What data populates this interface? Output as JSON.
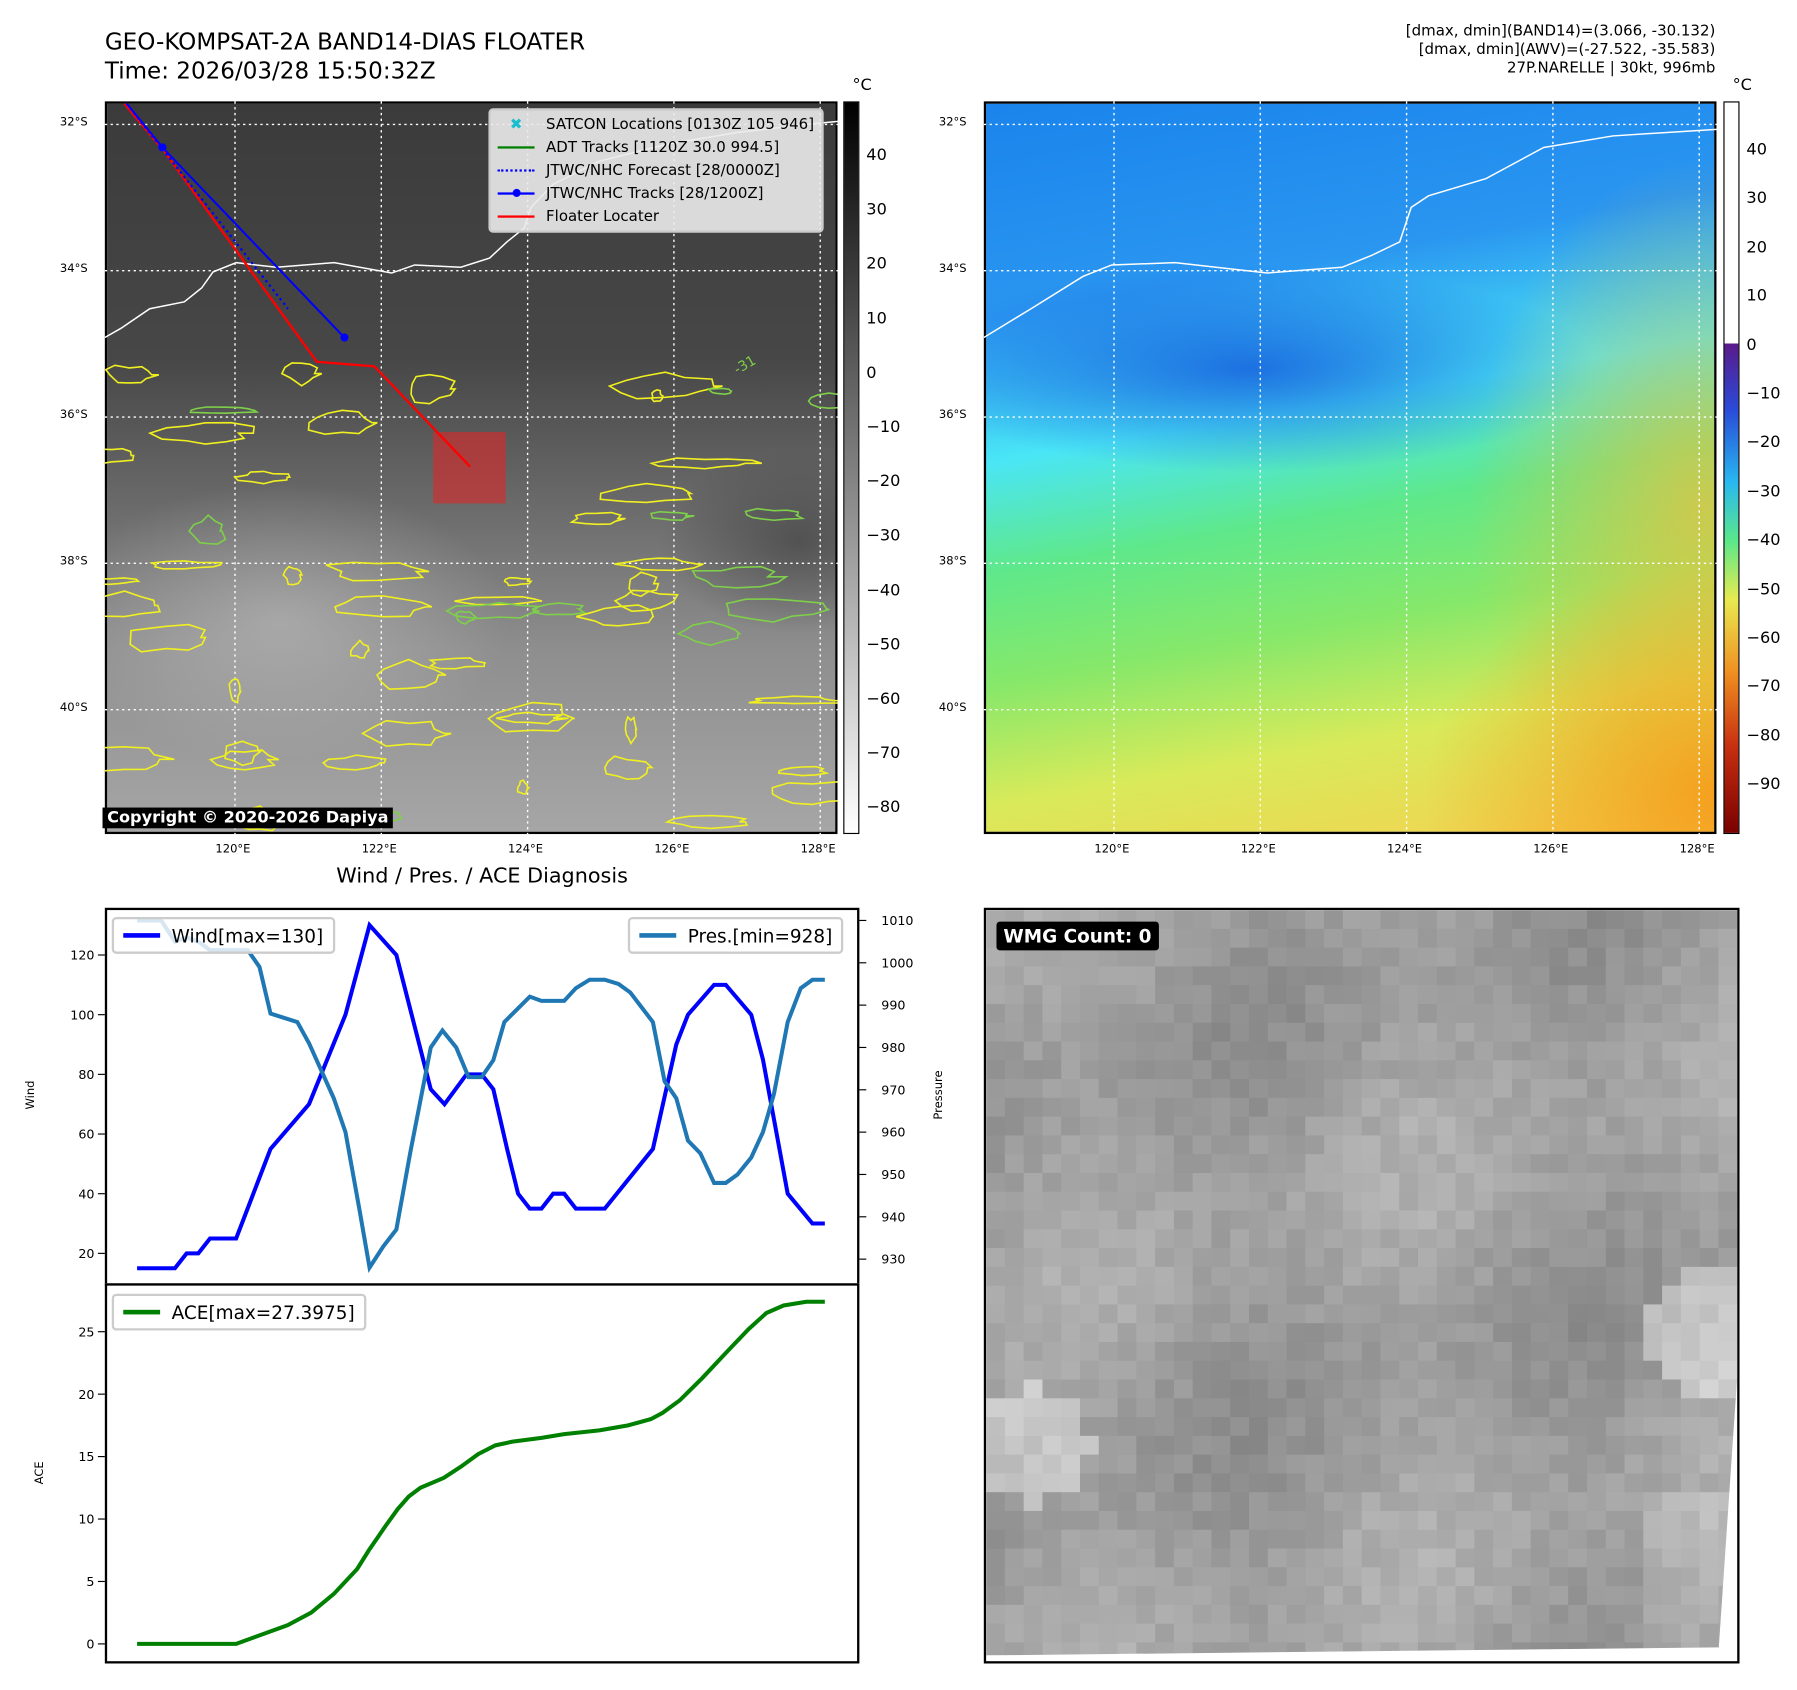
{
  "header": {
    "title": "GEO-KOMPSAT-2A BAND14-DIAS FLOATER",
    "time": "Time: 2026/03/28 15:50:32Z",
    "info": [
      "[dmax, dmin](BAND14)=(3.066, -30.132)",
      "[dmax, dmin](AWV)=(-27.522, -35.583)",
      "27P.NARELLE | 30kt, 996mb"
    ]
  },
  "maps": {
    "lat_labels": [
      "32°S",
      "34°S",
      "36°S",
      "38°S",
      "40°S"
    ],
    "lon_labels": [
      "120°E",
      "122°E",
      "124°E",
      "126°E",
      "128°E"
    ],
    "unit": "°C",
    "left_colorbar_ticks": [
      "40",
      "30",
      "20",
      "10",
      "0",
      "−10",
      "−20",
      "−30",
      "−40",
      "−50",
      "−60",
      "−70",
      "−80"
    ],
    "right_colorbar_ticks": [
      "40",
      "30",
      "20",
      "10",
      "0",
      "−10",
      "−20",
      "−30",
      "−40",
      "−50",
      "−60",
      "−70",
      "−80",
      "−90"
    ],
    "contour_label": "-31",
    "legend": [
      "SATCON Locations [0130Z 105 946]",
      "ADT Tracks [1120Z 30.0 994.5]",
      "JTWC/NHC Forecast [28/0000Z]",
      "JTWC/NHC Tracks [28/1200Z]",
      "Floater Locater"
    ],
    "copyright": "Copyright © 2020-2026 Dapiya",
    "colors": {
      "satcon": "#17becf",
      "adt": "#008000",
      "forecast": "#0000ff",
      "tracks": "#0000ff",
      "floater": "#ff0000",
      "contour": "#ffff33"
    }
  },
  "wmg": {
    "label": "WMG Count: 0"
  },
  "chart_data": [
    {
      "type": "line",
      "title": "Wind / Pres. / ACE Diagnosis",
      "xlabel": "",
      "ylabel": "Wind",
      "y2label": "Pressure",
      "ylim": [
        10,
        135
      ],
      "y2lim": [
        925,
        1012
      ],
      "yticks": [
        20,
        40,
        60,
        80,
        100,
        120
      ],
      "y2ticks": [
        930,
        940,
        950,
        960,
        970,
        980,
        990,
        1000,
        1010
      ],
      "series": [
        {
          "name": "Wind[max=130]",
          "color": "#0000ff",
          "axis": "left",
          "points": [
            [
              0,
              15
            ],
            [
              5.5,
              15
            ],
            [
              7.2,
              20
            ],
            [
              8.9,
              20
            ],
            [
              10.6,
              25
            ],
            [
              14.4,
              25
            ],
            [
              19.4,
              55
            ],
            [
              25,
              70
            ],
            [
              30.3,
              100
            ],
            [
              33.8,
              130
            ],
            [
              37.7,
              120
            ],
            [
              42.7,
              75
            ],
            [
              44.7,
              70
            ],
            [
              47.9,
              80
            ],
            [
              50.1,
              80
            ],
            [
              51.8,
              75
            ],
            [
              53.8,
              55
            ],
            [
              55.4,
              40
            ],
            [
              57.1,
              35
            ],
            [
              58.8,
              35
            ],
            [
              60.5,
              40
            ],
            [
              62.1,
              40
            ],
            [
              63.8,
              35
            ],
            [
              68,
              35
            ],
            [
              75,
              55
            ],
            [
              78.4,
              90
            ],
            [
              80.1,
              100
            ],
            [
              83.9,
              110
            ],
            [
              85.6,
              110
            ],
            [
              89.3,
              100
            ],
            [
              91,
              85
            ],
            [
              92.6,
              65
            ],
            [
              94.6,
              40
            ],
            [
              98.2,
              30
            ],
            [
              100,
              30
            ]
          ]
        },
        {
          "name": "Pres.[min=928]",
          "color": "#1f77b4",
          "axis": "right",
          "points": [
            [
              0,
              1010
            ],
            [
              3.5,
              1010
            ],
            [
              5.5,
              1005
            ],
            [
              7.2,
              1006
            ],
            [
              8.9,
              1005
            ],
            [
              10.6,
              1003
            ],
            [
              16.1,
              1003
            ],
            [
              17.8,
              999
            ],
            [
              19.4,
              988
            ],
            [
              23.3,
              986
            ],
            [
              25,
              981
            ],
            [
              28.6,
              968
            ],
            [
              30.3,
              960
            ],
            [
              32.3,
              942
            ],
            [
              33.8,
              928
            ],
            [
              35.8,
              933
            ],
            [
              37.7,
              937
            ],
            [
              39.7,
              955
            ],
            [
              42.7,
              980
            ],
            [
              44.4,
              984
            ],
            [
              46.4,
              980
            ],
            [
              48.2,
              973
            ],
            [
              50.1,
              973
            ],
            [
              51.8,
              977
            ],
            [
              53.4,
              986
            ],
            [
              57.1,
              992
            ],
            [
              58.8,
              991
            ],
            [
              62.1,
              991
            ],
            [
              63.8,
              994
            ],
            [
              65.8,
              996
            ],
            [
              68,
              996
            ],
            [
              70,
              995
            ],
            [
              71.7,
              993
            ],
            [
              75,
              986
            ],
            [
              76.7,
              972
            ],
            [
              78.4,
              968
            ],
            [
              80.1,
              958
            ],
            [
              81.9,
              955
            ],
            [
              83.9,
              948
            ],
            [
              85.6,
              948
            ],
            [
              87.3,
              950
            ],
            [
              89.3,
              954
            ],
            [
              91,
              960
            ],
            [
              92.6,
              969
            ],
            [
              94.6,
              986
            ],
            [
              96.5,
              994
            ],
            [
              98.2,
              996
            ],
            [
              100,
              996
            ]
          ]
        }
      ]
    },
    {
      "type": "line",
      "ylabel": "ACE",
      "ylim": [
        -1,
        28.8
      ],
      "yticks": [
        0,
        5,
        10,
        15,
        20,
        25
      ],
      "series": [
        {
          "name": "ACE[max=27.3975]",
          "color": "#008000",
          "points": [
            [
              0,
              0
            ],
            [
              14.4,
              0
            ],
            [
              16.9,
              0.5
            ],
            [
              21.9,
              1.5
            ],
            [
              25.3,
              2.5
            ],
            [
              28.6,
              4
            ],
            [
              32,
              6
            ],
            [
              33.7,
              7.5
            ],
            [
              36.2,
              9.5
            ],
            [
              37.9,
              10.8
            ],
            [
              39.5,
              11.8
            ],
            [
              41.2,
              12.5
            ],
            [
              44.6,
              13.3
            ],
            [
              47.1,
              14.2
            ],
            [
              49.6,
              15.2
            ],
            [
              52.1,
              15.9
            ],
            [
              54.6,
              16.2
            ],
            [
              58.8,
              16.5
            ],
            [
              62.1,
              16.8
            ],
            [
              67.2,
              17.1
            ],
            [
              71.4,
              17.5
            ],
            [
              74.7,
              18
            ],
            [
              76.4,
              18.5
            ],
            [
              78.9,
              19.5
            ],
            [
              82.2,
              21.3
            ],
            [
              85.6,
              23.3
            ],
            [
              88.9,
              25.2
            ],
            [
              91.5,
              26.5
            ],
            [
              94,
              27.1
            ],
            [
              97.3,
              27.4
            ],
            [
              100,
              27.4
            ]
          ]
        }
      ]
    }
  ]
}
